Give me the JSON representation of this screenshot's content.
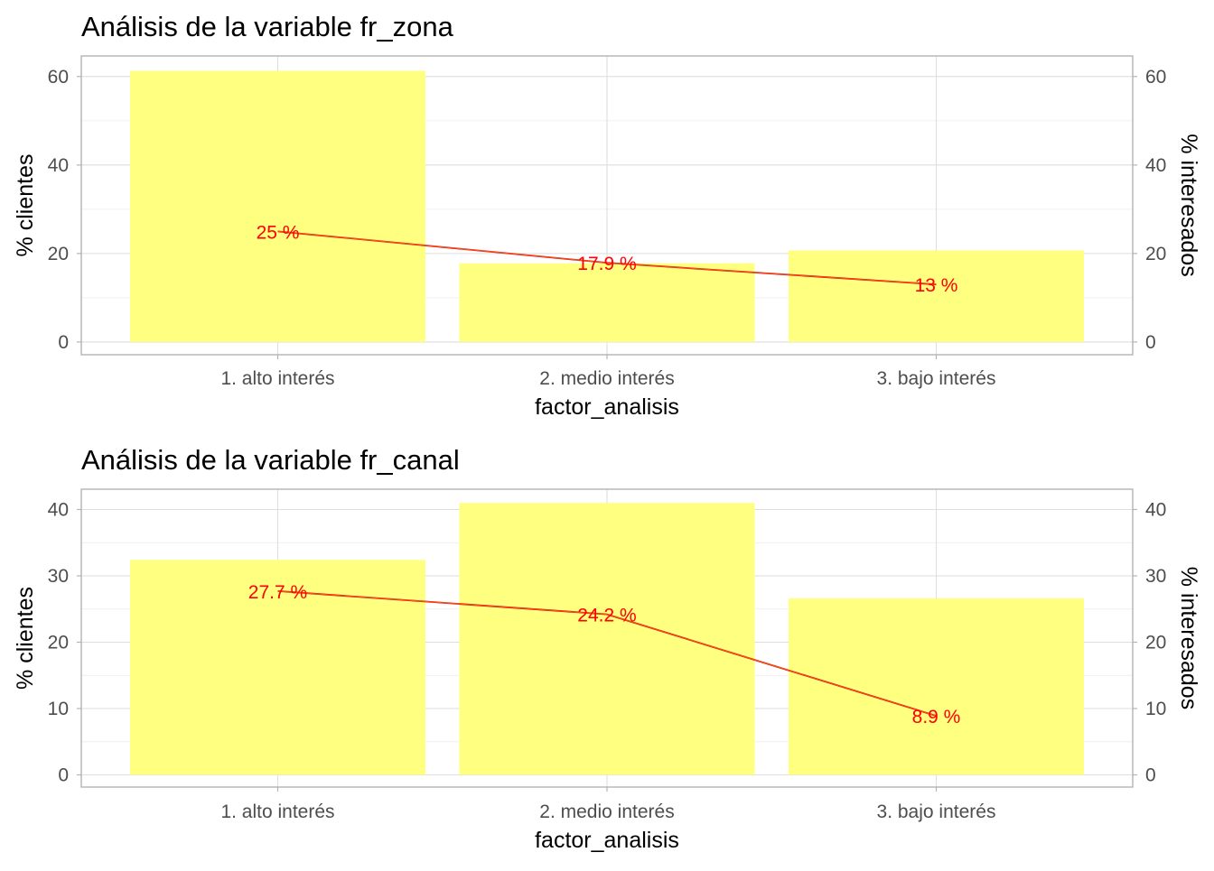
{
  "chart_data": [
    {
      "type": "bar",
      "title": "Análisis de la variable fr_zona",
      "xlabel": "factor_analisis",
      "ylabel": "% clientes",
      "y2label": "% interesados",
      "categories": [
        "1. alto interés",
        "2. medio interés",
        "3. bajo interés"
      ],
      "ylim": [
        0,
        63
      ],
      "yticks": [
        0,
        20,
        40,
        60
      ],
      "grid": true,
      "series": [
        {
          "kind": "bar",
          "values": [
            61.3,
            17.8,
            20.7
          ],
          "color": "#ffff80"
        },
        {
          "kind": "line",
          "values": [
            25.0,
            17.9,
            13.0
          ],
          "labels": [
            "25  %",
            "17.9  %",
            "13  %"
          ],
          "color": "#ff0000"
        }
      ]
    },
    {
      "type": "bar",
      "title": "Análisis de la variable fr_canal",
      "xlabel": "factor_analisis",
      "ylabel": "% clientes",
      "y2label": "% interesados",
      "categories": [
        "1. alto interés",
        "2. medio interés",
        "3. bajo interés"
      ],
      "ylim": [
        0,
        42
      ],
      "yticks": [
        0,
        10,
        20,
        30,
        40
      ],
      "grid": true,
      "series": [
        {
          "kind": "bar",
          "values": [
            32.4,
            41.0,
            26.6
          ],
          "color": "#ffff80"
        },
        {
          "kind": "line",
          "values": [
            27.7,
            24.2,
            8.9
          ],
          "labels": [
            "27.7  %",
            "24.2  %",
            "8.9  %"
          ],
          "color": "#ff0000"
        }
      ]
    }
  ]
}
